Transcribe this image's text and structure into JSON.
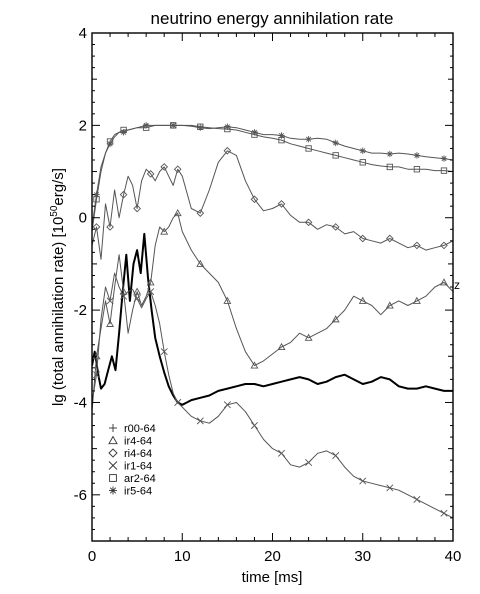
{
  "chart_data": {
    "type": "line",
    "title": "neutrino energy annihilation rate",
    "xlabel": "time [ms]",
    "ylabel_main": "lg (total annihilation rate) [10",
    "ylabel_exp": "50",
    "ylabel_unit": "erg/s]",
    "xlim": [
      0,
      40
    ],
    "ylim": [
      -7,
      4
    ],
    "grid": false,
    "legend_position": "bottom-left",
    "xticks": [
      "0",
      "10",
      "20",
      "30",
      "40"
    ],
    "yticks": [
      "4",
      "2",
      "0",
      "-2",
      "-4",
      "-6"
    ],
    "ytick_values": [
      4,
      2,
      0,
      -2,
      -4,
      -6
    ],
    "right_edge_label": "z",
    "series": [
      {
        "name": "r00-64",
        "marker": "plus",
        "color": "#000000",
        "width": 2.0,
        "x": [
          0,
          0.3,
          0.7,
          1.0,
          1.4,
          1.8,
          2.2,
          2.6,
          3.0,
          3.4,
          3.8,
          4.2,
          4.6,
          5.0,
          5.4,
          5.8,
          6.2,
          6.6,
          7.0,
          7.5,
          8,
          8.5,
          9,
          9.5,
          10,
          10.5,
          11,
          12,
          13,
          14,
          15,
          16,
          17,
          18,
          19,
          20,
          21,
          22,
          23,
          24,
          25,
          26,
          27,
          28,
          29,
          30,
          31,
          32,
          33,
          34,
          35,
          36,
          37,
          38,
          39,
          40
        ],
        "y": [
          -3.2,
          -2.9,
          -3.4,
          -3.7,
          -3.6,
          -3.3,
          -3.0,
          -3.3,
          -2.5,
          -1.6,
          -0.8,
          -1.8,
          -1.0,
          -0.7,
          -1.2,
          -0.35,
          -1.3,
          -2.0,
          -2.6,
          -3.0,
          -3.35,
          -3.65,
          -3.85,
          -4.0,
          -4.05,
          -4.0,
          -3.95,
          -3.9,
          -3.85,
          -3.75,
          -3.7,
          -3.65,
          -3.6,
          -3.6,
          -3.65,
          -3.6,
          -3.55,
          -3.5,
          -3.45,
          -3.5,
          -3.6,
          -3.55,
          -3.45,
          -3.4,
          -3.5,
          -3.6,
          -3.55,
          -3.45,
          -3.5,
          -3.65,
          -3.7,
          -3.7,
          -3.65,
          -3.7,
          -3.75,
          -3.75
        ]
      },
      {
        "name": "ir4-64",
        "marker": "triangle",
        "color": "#555555",
        "width": 1.0,
        "x": [
          0,
          0.5,
          1,
          1.5,
          2,
          2.5,
          3,
          3.5,
          4,
          4.5,
          5,
          5.5,
          6,
          6.5,
          7,
          7.5,
          8,
          8.5,
          9,
          9.5,
          10,
          11,
          12,
          13,
          14,
          15,
          16,
          17,
          18,
          19,
          20,
          21,
          22,
          23,
          24,
          25,
          26,
          27,
          28,
          29,
          30,
          31,
          32,
          33,
          34,
          35,
          36,
          37,
          38,
          39,
          40
        ],
        "y": [
          -4.2,
          -3.0,
          -2.4,
          -1.8,
          -2.3,
          -1.5,
          -0.8,
          -1.6,
          -2.5,
          -2.0,
          -1.6,
          -1.9,
          -1.7,
          -1.4,
          -0.6,
          -0.2,
          -0.3,
          -0.2,
          0.0,
          0.1,
          -0.3,
          -0.7,
          -1.0,
          -1.2,
          -1.4,
          -1.8,
          -2.4,
          -2.9,
          -3.2,
          -3.1,
          -2.95,
          -2.8,
          -2.7,
          -2.5,
          -2.6,
          -2.5,
          -2.4,
          -2.2,
          -2.0,
          -1.7,
          -1.8,
          -1.9,
          -2.1,
          -1.9,
          -1.8,
          -1.9,
          -1.8,
          -1.7,
          -1.5,
          -1.4,
          -1.6
        ]
      },
      {
        "name": "ri4-64",
        "marker": "diamond",
        "color": "#555555",
        "width": 1.0,
        "x": [
          0,
          0.5,
          1,
          1.5,
          2,
          2.5,
          3,
          3.5,
          4,
          4.5,
          5,
          5.5,
          6,
          6.5,
          7,
          7.5,
          8,
          8.5,
          9,
          9.5,
          10,
          11,
          12,
          13,
          14,
          15,
          16,
          17,
          18,
          19,
          20,
          21,
          22,
          23,
          24,
          25,
          26,
          27,
          28,
          29,
          30,
          31,
          32,
          33,
          34,
          35,
          36,
          37,
          38,
          39,
          40
        ],
        "y": [
          -0.6,
          -0.2,
          -0.9,
          0.3,
          -0.2,
          0.6,
          0.0,
          0.5,
          0.9,
          0.7,
          0.2,
          0.8,
          1.05,
          0.95,
          0.8,
          1.0,
          1.1,
          0.9,
          0.7,
          1.05,
          0.9,
          0.2,
          0.1,
          0.6,
          1.2,
          1.45,
          1.35,
          0.8,
          0.4,
          0.15,
          0.2,
          0.3,
          0.05,
          -0.1,
          -0.1,
          -0.25,
          -0.15,
          -0.2,
          -0.35,
          -0.3,
          -0.45,
          -0.5,
          -0.55,
          -0.45,
          -0.55,
          -0.65,
          -0.6,
          -0.7,
          -0.65,
          -0.6,
          -0.5
        ]
      },
      {
        "name": "ir1-64",
        "marker": "x",
        "color": "#555555",
        "width": 1.0,
        "x": [
          0,
          0.5,
          1,
          1.5,
          2,
          2.5,
          3,
          3.5,
          4,
          4.5,
          5,
          5.5,
          6,
          6.5,
          7,
          7.5,
          8,
          8.5,
          9,
          9.5,
          10,
          11,
          12,
          13,
          14,
          15,
          16,
          17,
          18,
          19,
          20,
          21,
          22,
          23,
          24,
          25,
          26,
          27,
          28,
          29,
          30,
          31,
          32,
          33,
          34,
          35,
          36,
          37,
          38,
          39,
          40
        ],
        "y": [
          -4.0,
          -3.4,
          -2.2,
          -1.5,
          -1.8,
          -1.2,
          -1.5,
          -1.7,
          -1.6,
          -1.55,
          -1.75,
          -1.95,
          -1.75,
          -1.6,
          -1.9,
          -2.3,
          -2.9,
          -3.4,
          -3.8,
          -4.0,
          -4.1,
          -4.3,
          -4.4,
          -4.45,
          -4.3,
          -4.05,
          -4.0,
          -4.2,
          -4.5,
          -4.8,
          -5.0,
          -5.1,
          -5.35,
          -5.4,
          -5.3,
          -5.1,
          -5.05,
          -5.15,
          -5.4,
          -5.6,
          -5.7,
          -5.75,
          -5.8,
          -5.85,
          -5.9,
          -6.0,
          -6.1,
          -6.2,
          -6.3,
          -6.4,
          -6.5
        ]
      },
      {
        "name": "ar2-64",
        "marker": "square",
        "color": "#555555",
        "width": 1.0,
        "x": [
          0,
          0.5,
          1,
          1.5,
          2,
          2.5,
          3,
          3.5,
          4,
          5,
          6,
          7,
          8,
          9,
          10,
          11,
          12,
          13,
          14,
          15,
          16,
          17,
          18,
          19,
          20,
          21,
          22,
          23,
          24,
          25,
          26,
          27,
          28,
          29,
          30,
          31,
          32,
          33,
          34,
          35,
          36,
          37,
          38,
          39,
          40
        ],
        "y": [
          -0.3,
          0.4,
          1.0,
          1.4,
          1.65,
          1.8,
          1.85,
          1.9,
          1.9,
          1.95,
          1.95,
          2.0,
          2.0,
          2.0,
          2.0,
          2.0,
          1.97,
          1.95,
          1.93,
          1.92,
          1.9,
          1.85,
          1.8,
          1.75,
          1.72,
          1.68,
          1.6,
          1.55,
          1.5,
          1.45,
          1.4,
          1.35,
          1.3,
          1.25,
          1.2,
          1.15,
          1.12,
          1.1,
          1.1,
          1.05,
          1.05,
          1.05,
          1.02,
          1.02,
          1.0
        ]
      },
      {
        "name": "ir5-64",
        "marker": "asterisk",
        "color": "#555555",
        "width": 1.0,
        "x": [
          0,
          0.5,
          1,
          1.5,
          2,
          2.5,
          3,
          3.5,
          4,
          5,
          6,
          7,
          8,
          9,
          10,
          11,
          12,
          13,
          14,
          15,
          16,
          17,
          18,
          19,
          20,
          21,
          22,
          23,
          24,
          25,
          26,
          27,
          28,
          29,
          30,
          31,
          32,
          33,
          34,
          35,
          36,
          37,
          38,
          39,
          40
        ],
        "y": [
          -0.2,
          0.5,
          1.1,
          1.4,
          1.6,
          1.75,
          1.85,
          1.85,
          1.9,
          1.95,
          2.0,
          2.0,
          2.0,
          2.0,
          2.0,
          1.98,
          1.95,
          1.93,
          1.95,
          1.97,
          1.95,
          1.9,
          1.85,
          1.8,
          1.8,
          1.78,
          1.72,
          1.7,
          1.7,
          1.72,
          1.7,
          1.62,
          1.55,
          1.5,
          1.45,
          1.4,
          1.4,
          1.38,
          1.4,
          1.38,
          1.35,
          1.32,
          1.3,
          1.28,
          1.25
        ]
      }
    ]
  }
}
